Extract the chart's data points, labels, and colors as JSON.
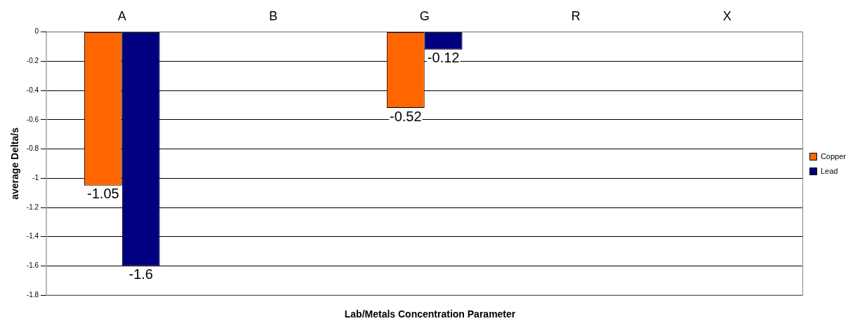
{
  "chart_data": {
    "type": "bar",
    "xlabel": "Lab/Metals Concentration Parameter",
    "ylabel": "average Delta/s",
    "categories": [
      "A",
      "B",
      "G",
      "R",
      "X"
    ],
    "series": [
      {
        "name": "Copper",
        "color": "#ff6600",
        "values": [
          -1.05,
          null,
          -0.52,
          null,
          null
        ]
      },
      {
        "name": "Lead",
        "color": "#000080",
        "values": [
          -1.6,
          null,
          -0.12,
          null,
          null
        ]
      }
    ],
    "ylim": [
      -1.8,
      0
    ],
    "yticks": [
      0,
      -0.2,
      -0.4,
      -0.6,
      -0.8,
      -1,
      -1.2,
      -1.4,
      -1.6,
      -1.8
    ],
    "grid": "y",
    "legend": "right",
    "data_labels": true
  }
}
